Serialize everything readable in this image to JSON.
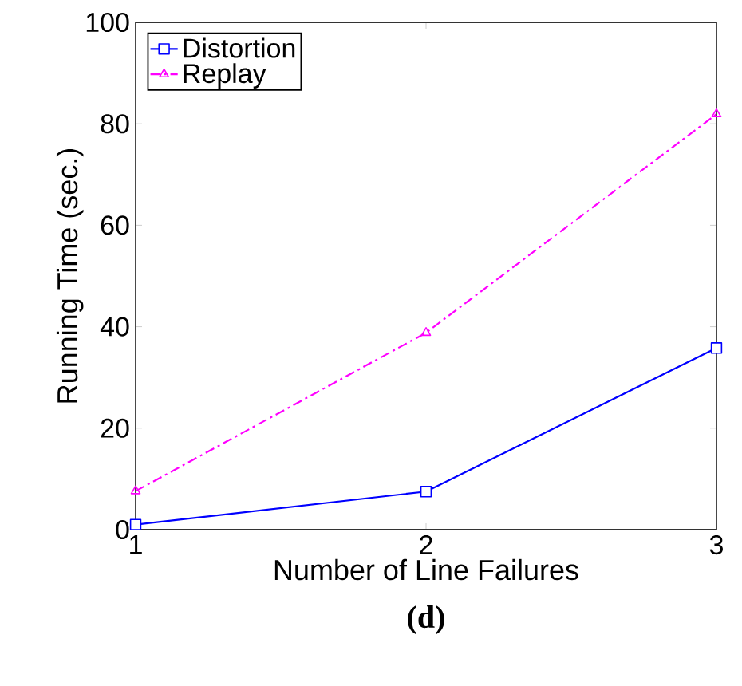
{
  "chart_data": {
    "type": "line",
    "xlabel": "Number of Line Failures",
    "ylabel": "Running Time (sec.)",
    "x": [
      1,
      2,
      3
    ],
    "xlim": [
      1,
      3
    ],
    "xticks": [
      1,
      2,
      3
    ],
    "ylim": [
      0,
      100
    ],
    "yticks": [
      0,
      20,
      40,
      60,
      80,
      100
    ],
    "grid": false,
    "legend": "top left",
    "series": [
      {
        "name": "Distortion",
        "color": "#0000ff",
        "values": [
          1,
          7.5,
          35.8
        ],
        "marker": "square",
        "line_style": "solid"
      },
      {
        "name": "Replay",
        "color": "#ff00ff",
        "values": [
          7.6,
          38.8,
          81.9
        ],
        "marker": "triangle",
        "line_style": "dashdot"
      }
    ],
    "annotations": [
      "(d)"
    ]
  }
}
